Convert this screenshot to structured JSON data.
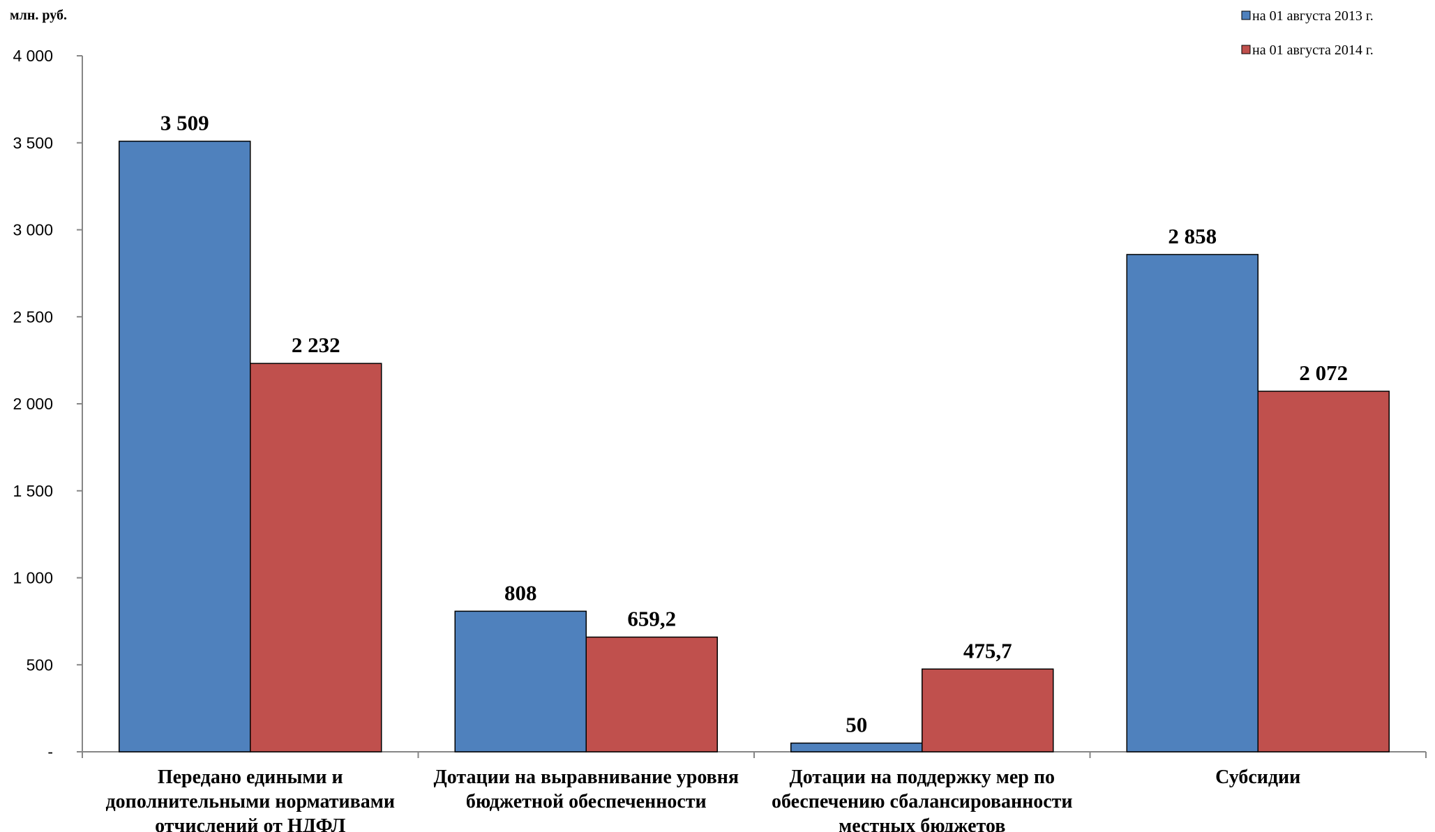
{
  "chart_data": {
    "type": "bar",
    "unit_label": "млн. руб.",
    "categories": [
      [
        "Передано едиными и",
        "дополнительными нормативами",
        "отчислений от НДФЛ"
      ],
      [
        "Дотации на выравнивание уровня",
        "бюджетной обеспеченности"
      ],
      [
        "Дотации на поддержку мер по",
        "обеспечению сбалансированности",
        "местных бюджетов"
      ],
      [
        "Субсидии"
      ]
    ],
    "series": [
      {
        "name": "на 01 августа 2013 г.",
        "color": "#4F81BD",
        "values": [
          3509,
          808,
          50,
          2858
        ],
        "labels": [
          "3 509",
          "808",
          "50",
          "2 858"
        ]
      },
      {
        "name": "на 01 августа 2014 г.",
        "color": "#C0504D",
        "values": [
          2232,
          659.2,
          475.7,
          2072
        ],
        "labels": [
          "2 232",
          "659,2",
          "475,7",
          "2 072"
        ]
      }
    ],
    "ylim": [
      0,
      4000
    ],
    "yticks": [
      0,
      500,
      1000,
      1500,
      2000,
      2500,
      3000,
      3500,
      4000
    ],
    "ytick_labels": [
      "-",
      "500",
      "1 000",
      "1 500",
      "2 000",
      "2 500",
      "3 000",
      "3 500",
      "4 000"
    ],
    "grid": false,
    "legend_position": "top-right"
  }
}
